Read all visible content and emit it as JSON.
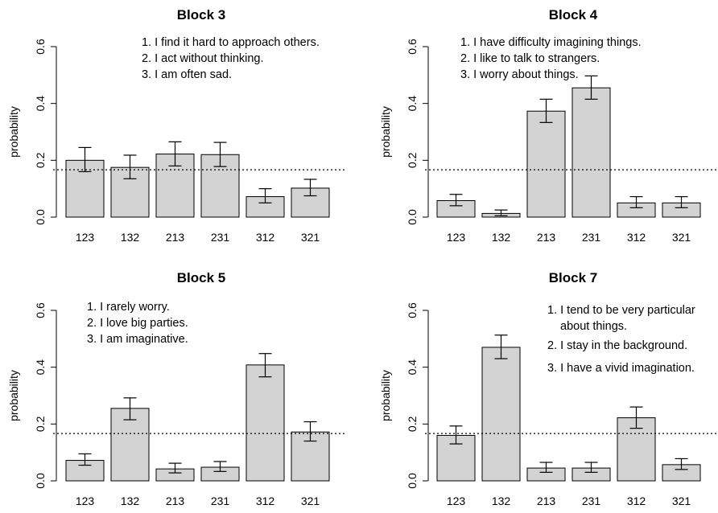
{
  "chart_data": [
    {
      "type": "bar",
      "title": "Block 3",
      "ylabel": "probability",
      "xlabel": "",
      "ylim": [
        0,
        0.6
      ],
      "yticks": [
        "0.0",
        "0.2",
        "0.4",
        "0.6"
      ],
      "categories": [
        "123",
        "132",
        "213",
        "231",
        "312",
        "321"
      ],
      "values": [
        0.2,
        0.175,
        0.222,
        0.22,
        0.072,
        0.102
      ],
      "error_low": [
        0.16,
        0.135,
        0.18,
        0.178,
        0.05,
        0.075
      ],
      "error_high": [
        0.245,
        0.218,
        0.265,
        0.263,
        0.1,
        0.133
      ],
      "reference_line": 0.1667,
      "annotations": [
        "1. I find it hard to approach others.",
        "2. I act without thinking.",
        "3. I am often sad."
      ]
    },
    {
      "type": "bar",
      "title": "Block 4",
      "ylabel": "probability",
      "xlabel": "",
      "ylim": [
        0,
        0.6
      ],
      "yticks": [
        "0.0",
        "0.2",
        "0.4",
        "0.6"
      ],
      "categories": [
        "123",
        "132",
        "213",
        "231",
        "312",
        "321"
      ],
      "values": [
        0.058,
        0.013,
        0.373,
        0.455,
        0.05,
        0.05
      ],
      "error_low": [
        0.04,
        0.005,
        0.333,
        0.415,
        0.033,
        0.033
      ],
      "error_high": [
        0.08,
        0.025,
        0.415,
        0.497,
        0.072,
        0.072
      ],
      "reference_line": 0.1667,
      "annotations": [
        "1. I have difficulty imagining things.",
        "2. I like to talk to strangers.",
        "3. I worry about things."
      ]
    },
    {
      "type": "bar",
      "title": "Block 5",
      "ylabel": "probability",
      "xlabel": "",
      "ylim": [
        0,
        0.6
      ],
      "yticks": [
        "0.0",
        "0.2",
        "0.4",
        "0.6"
      ],
      "categories": [
        "123",
        "132",
        "213",
        "231",
        "312",
        "321"
      ],
      "values": [
        0.072,
        0.255,
        0.042,
        0.048,
        0.408,
        0.172
      ],
      "error_low": [
        0.055,
        0.215,
        0.028,
        0.033,
        0.366,
        0.14
      ],
      "error_high": [
        0.095,
        0.292,
        0.062,
        0.068,
        0.448,
        0.208
      ],
      "reference_line": 0.1667,
      "annotations": [
        "1. I rarely worry.",
        "2. I love big parties.",
        "3. I am imaginative."
      ]
    },
    {
      "type": "bar",
      "title": "Block 7",
      "ylabel": "probability",
      "xlabel": "",
      "ylim": [
        0,
        0.6
      ],
      "yticks": [
        "0.0",
        "0.2",
        "0.4",
        "0.6"
      ],
      "categories": [
        "123",
        "132",
        "213",
        "231",
        "312",
        "321"
      ],
      "values": [
        0.16,
        0.47,
        0.045,
        0.045,
        0.222,
        0.057
      ],
      "error_low": [
        0.13,
        0.43,
        0.03,
        0.03,
        0.185,
        0.04
      ],
      "error_high": [
        0.193,
        0.513,
        0.065,
        0.065,
        0.26,
        0.078
      ],
      "reference_line": 0.1667,
      "annotations": [
        "1. I tend to be very particular",
        "about things.",
        "2. I stay in the background.",
        "3. I have a vivid imagination."
      ]
    }
  ]
}
